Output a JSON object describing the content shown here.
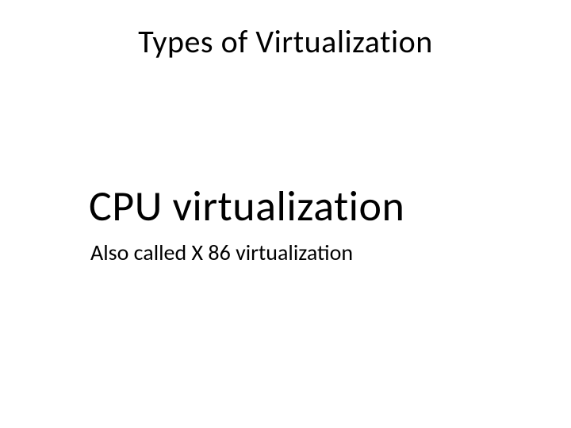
{
  "slide": {
    "title": "Types of Virtualization",
    "heading": "CPU virtualization",
    "subtext": "Also called X 86 virtualization"
  },
  "style": {
    "background_color": "#ffffff",
    "text_color": "#000000",
    "title_fontsize": 40,
    "heading_fontsize": 54,
    "subtext_fontsize": 28,
    "font_family": "Calibri"
  }
}
